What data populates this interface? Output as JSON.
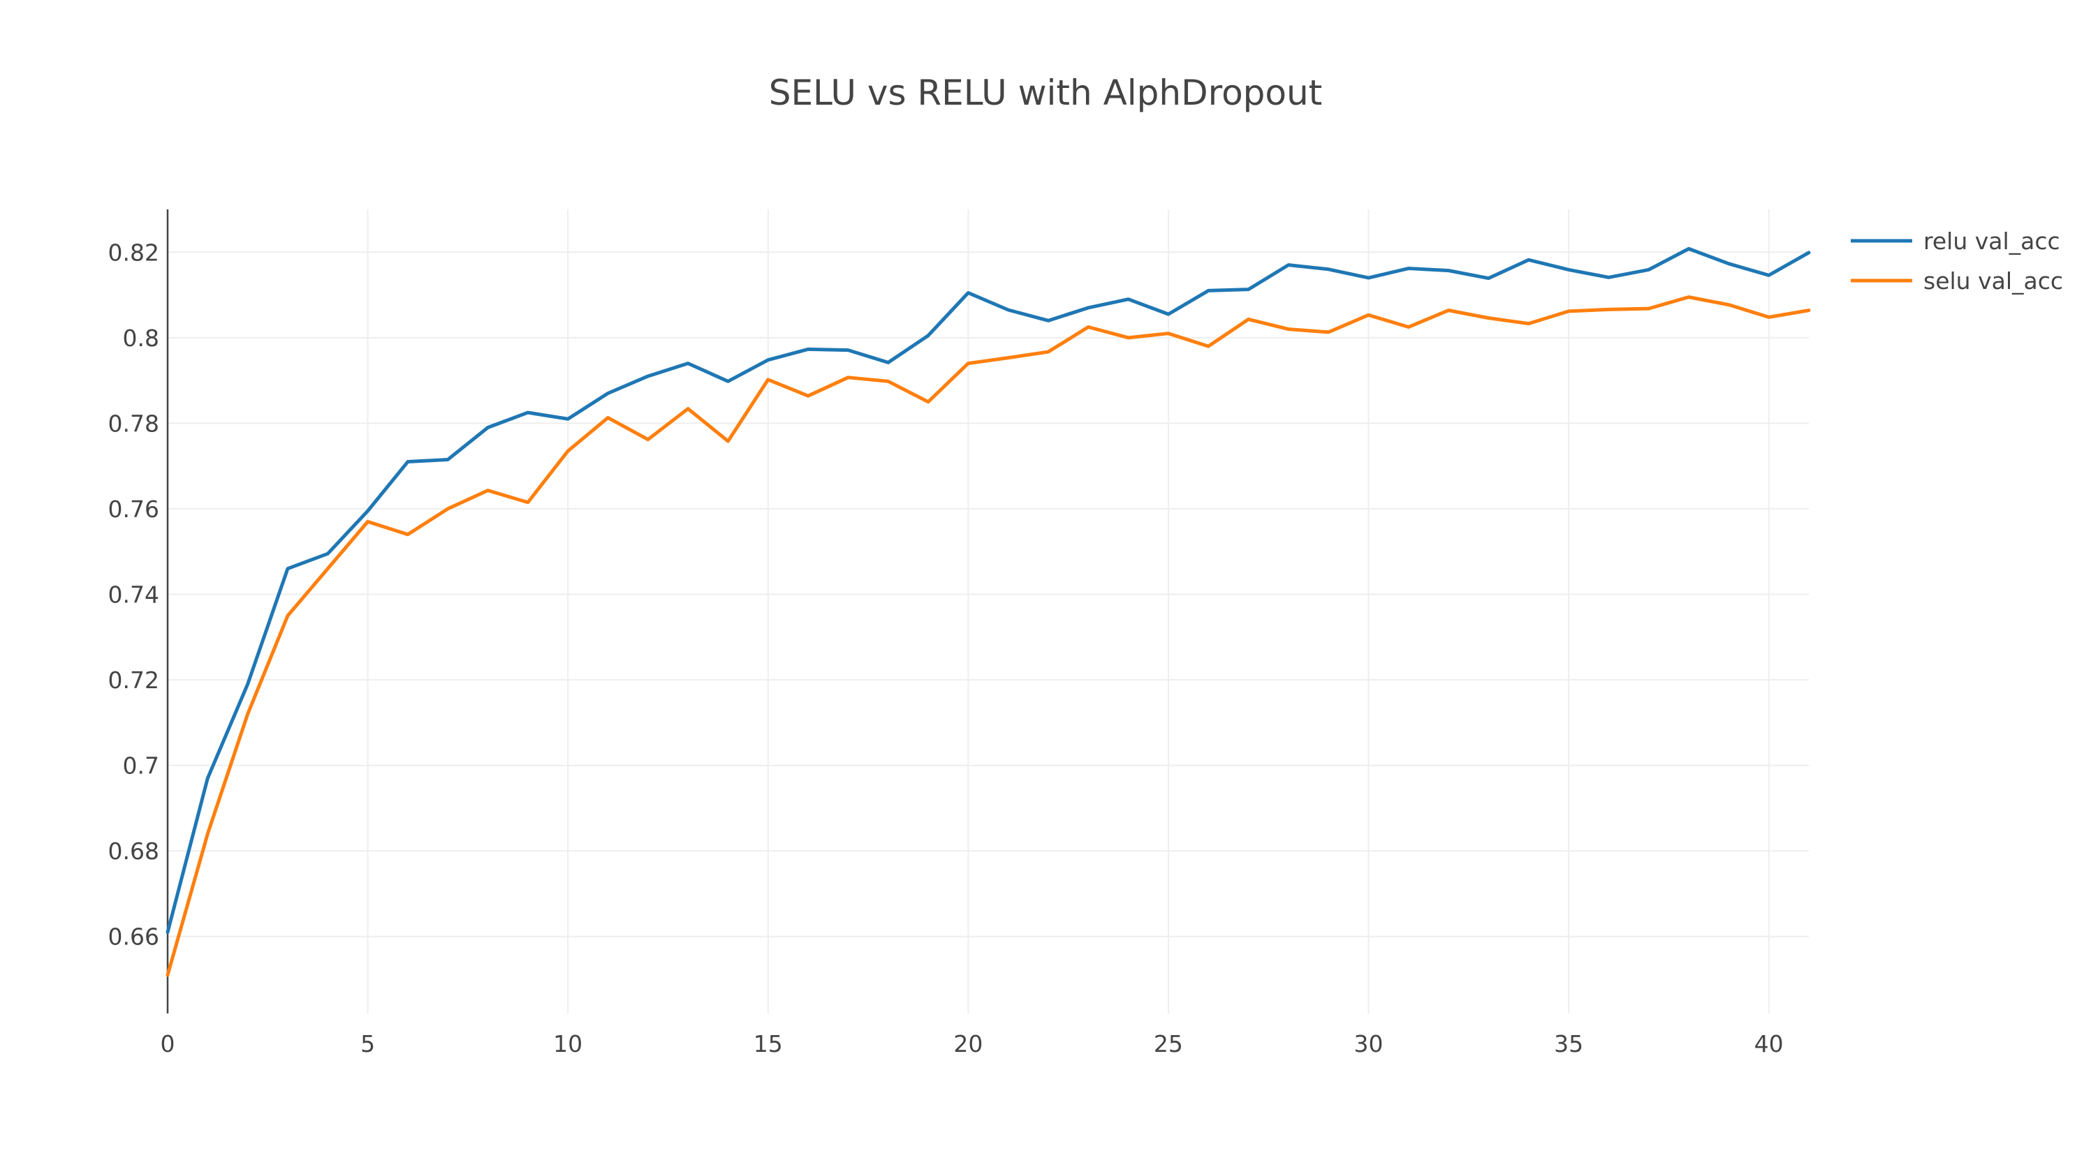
{
  "chart_data": {
    "type": "line",
    "title": "SELU vs RELU with AlphDropout",
    "xlabel": "",
    "ylabel": "",
    "xlim": [
      0,
      41
    ],
    "ylim": [
      0.642,
      0.83
    ],
    "x_ticks": [
      0,
      5,
      10,
      15,
      20,
      25,
      30,
      35,
      40
    ],
    "y_ticks": [
      0.66,
      0.68,
      0.7,
      0.72,
      0.74,
      0.76,
      0.78,
      0.8,
      0.82
    ],
    "y_tick_labels": [
      "0.66",
      "0.68",
      "0.7",
      "0.72",
      "0.74",
      "0.76",
      "0.78",
      "0.8",
      "0.82"
    ],
    "grid": true,
    "legend_position": "top-right",
    "x": [
      0,
      1,
      2,
      3,
      4,
      5,
      6,
      7,
      8,
      9,
      10,
      11,
      12,
      13,
      14,
      15,
      16,
      17,
      18,
      19,
      20,
      21,
      22,
      23,
      24,
      25,
      26,
      27,
      28,
      29,
      30,
      31,
      32,
      33,
      34,
      35,
      36,
      37,
      38,
      39,
      40,
      41
    ],
    "series": [
      {
        "name": "relu val_acc",
        "color": "#1f77b4",
        "values": [
          0.661,
          0.697,
          0.719,
          0.746,
          0.7495,
          0.7595,
          0.771,
          0.7715,
          0.779,
          0.7825,
          0.781,
          0.787,
          0.791,
          0.794,
          0.7898,
          0.7948,
          0.7973,
          0.7971,
          0.7942,
          0.8005,
          0.8105,
          0.8065,
          0.804,
          0.807,
          0.809,
          0.8055,
          0.811,
          0.8113,
          0.817,
          0.816,
          0.814,
          0.8162,
          0.8157,
          0.8139,
          0.8182,
          0.8159,
          0.8141,
          0.8159,
          0.8208,
          0.8173,
          0.8146,
          0.8199
        ]
      },
      {
        "name": "selu val_acc",
        "color": "#ff7f0e",
        "values": [
          0.651,
          0.684,
          0.712,
          0.735,
          0.746,
          0.757,
          0.754,
          0.76,
          0.7643,
          0.7615,
          0.7735,
          0.7813,
          0.7762,
          0.7834,
          0.7758,
          0.7902,
          0.7864,
          0.7907,
          0.7898,
          0.785,
          0.794,
          0.7953,
          0.7967,
          0.8025,
          0.8,
          0.801,
          0.798,
          0.8043,
          0.802,
          0.8013,
          0.8053,
          0.8025,
          0.8064,
          0.8046,
          0.8033,
          0.8062,
          0.8066,
          0.8068,
          0.8095,
          0.8077,
          0.8048,
          0.8064
        ]
      }
    ]
  }
}
